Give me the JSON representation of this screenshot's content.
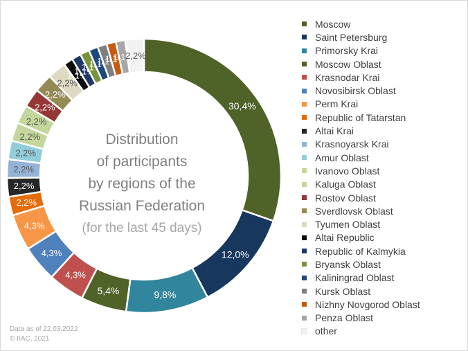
{
  "chart_data": {
    "type": "donut",
    "title": "Distribution of participants by regions of the Russian Federation",
    "subtitle": "(for the last 45 days)",
    "categories": [
      "Moscow",
      "Saint Petersburg",
      "Primorsky Krai",
      "Moscow Oblast",
      "Krasnodar Krai",
      "Novosibirsk Oblast",
      "Perm Krai",
      "Republic of Tatarstan",
      "Altai Krai",
      "Krasnoyarsk Krai",
      "Amur Oblast",
      "Ivanovo Oblast",
      "Kaluga Oblast",
      "Rostov Oblast",
      "Sverdlovsk Oblast",
      "Tyumen Oblast",
      "Altai Republic",
      "Republic of Kalmykia",
      "Bryansk Oblast",
      "Kaliningrad Oblast",
      "Kursk Oblast",
      "Nizhny Novgorod Oblast",
      "Penza Oblast",
      "other"
    ],
    "values": [
      30.4,
      12.0,
      9.8,
      5.4,
      4.3,
      4.3,
      4.3,
      2.2,
      2.2,
      2.2,
      2.2,
      2.2,
      2.2,
      2.2,
      2.2,
      2.2,
      1.1,
      1.1,
      1.1,
      1.1,
      1.1,
      1.1,
      1.1,
      2.2
    ],
    "labels": [
      "30,4%",
      "12,0%",
      "9,8%",
      "5,4%",
      "4,3%",
      "4,3%",
      "4,3%",
      "2,2%",
      "2,2%",
      "2,2%",
      "2,2%",
      "2,2%",
      "2,2%",
      "2,2%",
      "2,2%",
      "2,2%",
      "1,1%",
      "1,1%",
      "1,1%",
      "1,1%",
      "1,1%",
      "1,1%",
      "1,1%",
      "2,2%"
    ],
    "colors": [
      "#4f6228",
      "#17375e",
      "#31859c",
      "#4f6228",
      "#c0504d",
      "#4f81bd",
      "#f79646",
      "#e46c0a",
      "#262626",
      "#95b3d7",
      "#92cddc",
      "#c3d69b",
      "#c3d69b",
      "#953735",
      "#948a54",
      "#ddd9c3",
      "#0d0d0d",
      "#1f3864",
      "#77933c",
      "#1f497d",
      "#7f7f7f",
      "#c55a11",
      "#a6a6a6",
      "#f2f2f2"
    ],
    "legend_position": "right"
  },
  "text": {
    "center_title_1": "Distribution",
    "center_title_2": "of participants",
    "center_title_3": "by regions of the",
    "center_title_4": "Russian Federation",
    "center_subtitle": "(for the last 45 days)",
    "footnote_date": "Data as of 22.03.2022",
    "footnote_copyright": "© IIAC, 2021"
  }
}
